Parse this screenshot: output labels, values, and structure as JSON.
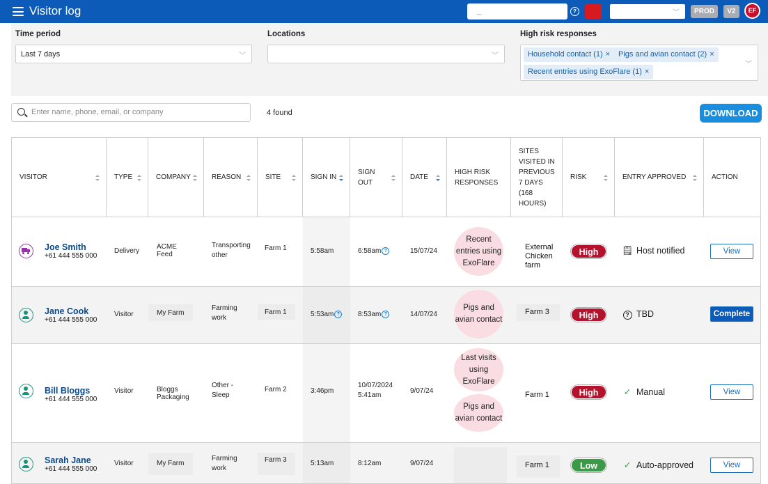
{
  "app": {
    "title": "Visitor log"
  },
  "topbar": {
    "search_value": "_",
    "env_badge": "PROD",
    "version_badge": "V2",
    "user_initials": "EF",
    "icons": [
      "menu-icon",
      "help-icon",
      "flag-icon",
      "chevron-down-icon"
    ]
  },
  "filters": {
    "time_period": {
      "label": "Time period",
      "value": "Last 7 days"
    },
    "locations": {
      "label": "Locations",
      "value": ""
    },
    "high_risk": {
      "label": "High risk responses",
      "chips": [
        "Household contact (1)",
        "Pigs and avian contact (2)",
        "Recent entries using ExoFlare (1)"
      ],
      "remove_glyph": "×"
    }
  },
  "search": {
    "placeholder": "Enter name, phone, email, or company"
  },
  "results": {
    "count_text": "4 found"
  },
  "download": {
    "label": "DOWNLOAD"
  },
  "table": {
    "headers": [
      "VISITOR",
      "TYPE",
      "COMPANY",
      "REASON",
      "SITE",
      "SIGN IN",
      "SIGN OUT",
      "DATE",
      "HIGH RISK RESPONSES",
      "SITES VISITED IN PREVIOUS 7 DAYS (168 HOURS)",
      "RISK",
      "ENTRY APPROVED",
      "ACTION"
    ],
    "rows": [
      {
        "avatar": "truck-icon",
        "name": "Joe Smith",
        "phone": "+61 444 555 000",
        "type": "Delivery",
        "company": "ACME Feed",
        "reason": "Transporting other",
        "site": "Farm 1",
        "sign_in": "5:58am",
        "sign_out": "6:58am",
        "date": "15/07/24",
        "responses": [
          "Recent entries using ExoFlare"
        ],
        "sites_visited": "External Chicken farm",
        "risk": "High",
        "approved": "Host notified",
        "approved_icon": "notification-icon",
        "action": "View"
      },
      {
        "avatar": "person-icon",
        "name": "Jane Cook",
        "phone": "+61 444 555 000",
        "type": "Visitor",
        "company": "My Farm",
        "reason": "Farming work",
        "site": "Farm 1",
        "sign_in": "5:53am",
        "sign_out": "8:53am",
        "date": "14/07/24",
        "responses": [
          "Pigs and avian contact"
        ],
        "sites_visited": "Farm 3",
        "risk": "High",
        "approved": "TBD",
        "approved_icon": "question-icon",
        "action": "Complete"
      },
      {
        "avatar": "person-icon",
        "name": "Bill Bloggs",
        "phone": "+61 444 555 000",
        "type": "Visitor",
        "company": "Bloggs Packaging",
        "reason": "Other - Sleep",
        "site": "Farm 2",
        "sign_in": "3:46pm",
        "sign_out_date": "10/07/2024",
        "sign_out": "5:41am",
        "date": "9/07/24",
        "responses": [
          "Last visits using ExoFlare",
          "Pigs and avian contact"
        ],
        "sites_visited": "Farm 1",
        "risk": "High",
        "approved": "Manual",
        "approved_icon": "check-icon",
        "action": "View"
      },
      {
        "avatar": "person-icon",
        "name": "Sarah Jane",
        "phone": "+61 444 555 000",
        "type": "Visitor",
        "company": "My Farm",
        "reason": "Farming work",
        "site": "Farm 3",
        "sign_in": "5:13am",
        "sign_out": "8:12am",
        "date": "9/07/24",
        "responses": [],
        "sites_visited": "Farm 1",
        "risk": "Low",
        "approved": "Auto-approved",
        "approved_icon": "check-icon",
        "action": "View"
      }
    ]
  },
  "colors": {
    "brand": "#0c5bb8",
    "download": "#1a8ede",
    "risk_high": "#b5122d",
    "risk_low": "#3a9a48",
    "name_link": "#0c4a8c",
    "bubble": "#f9dde2"
  }
}
